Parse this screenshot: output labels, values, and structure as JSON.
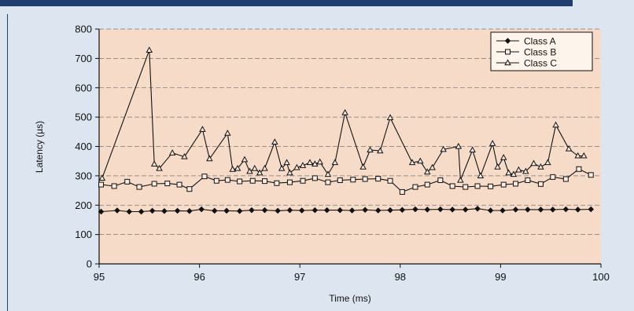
{
  "chart_data": {
    "type": "line",
    "xlabel": "Time (ms)",
    "ylabel": "Latency (µs)",
    "xlim": [
      95,
      100
    ],
    "ylim": [
      0,
      800
    ],
    "x_ticks": [
      "95",
      "96",
      "97",
      "98",
      "99",
      "100"
    ],
    "y_ticks": [
      "0",
      "100",
      "200",
      "300",
      "400",
      "500",
      "600",
      "700",
      "800"
    ],
    "grid": "horizontal dashed",
    "legend_position": "top-right",
    "plot_background": "#f6dcc8",
    "series": [
      {
        "name": "Class A",
        "marker": "filled-diamond",
        "x": [
          95.02,
          95.18,
          95.3,
          95.42,
          95.53,
          95.65,
          95.78,
          95.9,
          96.02,
          96.15,
          96.27,
          96.4,
          96.52,
          96.65,
          96.78,
          96.9,
          97.02,
          97.15,
          97.27,
          97.4,
          97.52,
          97.65,
          97.78,
          97.9,
          98.02,
          98.15,
          98.27,
          98.4,
          98.52,
          98.65,
          98.77,
          98.9,
          99.02,
          99.15,
          99.27,
          99.4,
          99.52,
          99.65,
          99.77,
          99.9
        ],
        "y": [
          178,
          182,
          178,
          178,
          181,
          180,
          181,
          180,
          186,
          181,
          181,
          180,
          183,
          183,
          181,
          183,
          182,
          183,
          183,
          183,
          182,
          184,
          182,
          183,
          184,
          186,
          185,
          186,
          185,
          185,
          188,
          182,
          182,
          185,
          185,
          185,
          185,
          186,
          185,
          186
        ]
      },
      {
        "name": "Class B",
        "marker": "open-square",
        "x": [
          95.02,
          95.15,
          95.28,
          95.4,
          95.55,
          95.68,
          95.8,
          95.9,
          96.05,
          96.17,
          96.28,
          96.4,
          96.53,
          96.65,
          96.77,
          96.9,
          97.03,
          97.15,
          97.28,
          97.4,
          97.53,
          97.65,
          97.78,
          97.9,
          98.02,
          98.15,
          98.27,
          98.4,
          98.52,
          98.65,
          98.77,
          98.9,
          99.03,
          99.15,
          99.27,
          99.4,
          99.52,
          99.65,
          99.78,
          99.9
        ],
        "y": [
          270,
          265,
          280,
          262,
          273,
          274,
          270,
          255,
          298,
          283,
          286,
          281,
          283,
          282,
          275,
          278,
          283,
          292,
          278,
          285,
          287,
          289,
          290,
          283,
          245,
          262,
          270,
          285,
          265,
          262,
          265,
          264,
          270,
          273,
          285,
          272,
          296,
          289,
          323,
          303
        ]
      },
      {
        "name": "Class C",
        "marker": "open-triangle",
        "x": [
          95.03,
          95.5,
          95.55,
          95.6,
          95.73,
          95.85,
          96.03,
          96.1,
          96.28,
          96.33,
          96.38,
          96.45,
          96.5,
          96.55,
          96.6,
          96.65,
          96.75,
          96.82,
          96.87,
          96.9,
          96.97,
          97.03,
          97.1,
          97.15,
          97.2,
          97.28,
          97.35,
          97.45,
          97.63,
          97.7,
          97.8,
          97.9,
          98.12,
          98.2,
          98.27,
          98.32,
          98.43,
          98.58,
          98.6,
          98.72,
          98.8,
          98.92,
          98.97,
          99.03,
          99.08,
          99.13,
          99.18,
          99.25,
          99.33,
          99.4,
          99.47,
          99.55,
          99.68,
          99.77,
          99.83
        ],
        "y": [
          292,
          728,
          340,
          325,
          378,
          365,
          458,
          358,
          445,
          322,
          325,
          355,
          315,
          325,
          310,
          325,
          415,
          325,
          345,
          310,
          328,
          335,
          345,
          340,
          347,
          305,
          345,
          515,
          330,
          388,
          385,
          498,
          345,
          350,
          313,
          328,
          390,
          400,
          285,
          388,
          300,
          410,
          330,
          362,
          310,
          305,
          320,
          315,
          342,
          330,
          345,
          473,
          392,
          368,
          368
        ]
      }
    ]
  }
}
